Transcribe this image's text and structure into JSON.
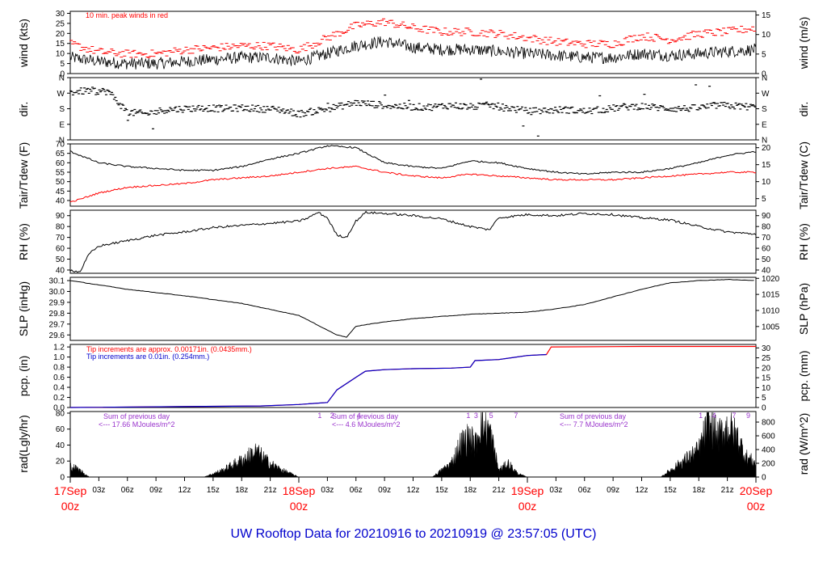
{
  "title": "UW Rooftop Data for 20210916  to  20210919 @ 23:57:05  (UTC)",
  "colors": {
    "red": "#ff0000",
    "blue": "#0000cc",
    "purple": "#9933cc",
    "black": "#000000"
  },
  "x_axis": {
    "hour_ticks": [
      "03z",
      "06z",
      "09z",
      "12z",
      "15z",
      "18z",
      "21z",
      "03z",
      "06z",
      "09z",
      "12z",
      "15z",
      "18z",
      "21z",
      "03z",
      "06z",
      "09z",
      "12z",
      "15z",
      "18z",
      "21z"
    ],
    "date_labels": [
      {
        "date": "17Sep",
        "time": "00z"
      },
      {
        "date": "18Sep",
        "time": "00z"
      },
      {
        "date": "19Sep",
        "time": "00z"
      },
      {
        "date": "20Sep",
        "time": "00z"
      }
    ]
  },
  "panels": {
    "wind": {
      "ylabel_left": "wind (kts)",
      "ylabel_right": "wind (m/s)",
      "left_ticks": [
        "0",
        "5",
        "10",
        "15",
        "20",
        "25",
        "30"
      ],
      "right_ticks": [
        "0",
        "5",
        "10",
        "15"
      ],
      "note": "10 min. peak winds in red"
    },
    "dir": {
      "ylabel_left": "dir.",
      "ylabel_right": "dir.",
      "ticks": [
        "N",
        "E",
        "S",
        "W",
        "N"
      ]
    },
    "temp": {
      "ylabel_left": "Tair/Tdew (F)",
      "ylabel_right": "Tair/Tdew (C)",
      "left_ticks": [
        "40",
        "45",
        "50",
        "55",
        "60",
        "65",
        "70"
      ],
      "right_ticks": [
        "5",
        "10",
        "15",
        "20"
      ]
    },
    "rh": {
      "ylabel_left": "RH (%)",
      "ylabel_right": "RH (%)",
      "ticks": [
        "40",
        "50",
        "60",
        "70",
        "80",
        "90"
      ]
    },
    "slp": {
      "ylabel_left": "SLP (inHg)",
      "ylabel_right": "SLP (hPa)",
      "left_ticks": [
        "29.6",
        "29.7",
        "29.8",
        "29.9",
        "30.0",
        "30.1"
      ],
      "right_ticks": [
        "1005",
        "1010",
        "1015",
        "1020"
      ]
    },
    "pcp": {
      "ylabel_left": "pcp. (in)",
      "ylabel_right": "pcp. (mm)",
      "left_ticks": [
        "0.0",
        "0.2",
        "0.4",
        "0.6",
        "0.8",
        "1.0",
        "1.2"
      ],
      "right_ticks": [
        "0",
        "5",
        "10",
        "15",
        "20",
        "25",
        "30"
      ],
      "note_red": "Tip increments are approx. 0.00171in. (0.0435mm.)",
      "note_blue": "Tip increments are 0.01in. (0.254mm.)"
    },
    "rad": {
      "ylabel_left": "rad(Lgly/hr)",
      "ylabel_right": "rad (W/m^2)",
      "left_ticks": [
        "0",
        "20",
        "40",
        "60",
        "80"
      ],
      "right_ticks": [
        "0",
        "200",
        "400",
        "600",
        "800"
      ],
      "summaries": [
        {
          "line1": "Sum of previous day",
          "line2": "<--- 17.66 MJoules/m^2"
        },
        {
          "line1": "Sum of previous day",
          "line2": "<--- 4.6 MJoules/m^2"
        },
        {
          "line1": "Sum of previous day",
          "line2": "<--- 7.7 MJoules/m^2"
        }
      ],
      "top_digits": [
        {
          "hour": 26.2,
          "label": "1"
        },
        {
          "hour": 27.5,
          "label": "2"
        },
        {
          "hour": 30.3,
          "label": "4"
        },
        {
          "hour": 41.8,
          "label": "1"
        },
        {
          "hour": 42.6,
          "label": "3"
        },
        {
          "hour": 44.2,
          "label": "5"
        },
        {
          "hour": 46.8,
          "label": "7"
        },
        {
          "hour": 66.2,
          "label": "1"
        },
        {
          "hour": 67.6,
          "label": "4"
        },
        {
          "hour": 69.7,
          "label": "7"
        },
        {
          "hour": 71.2,
          "label": "9"
        }
      ]
    }
  },
  "chart_data": [
    {
      "type": "line",
      "title": "",
      "ylabel": "wind (kts)",
      "ylim": [
        0,
        31
      ],
      "note": "10 min. peak winds in red",
      "x_unit": "hours since 17Sep 00z",
      "series": [
        {
          "style": "black mean wind",
          "x": [
            0,
            3,
            6,
            9,
            12,
            15,
            18,
            21,
            24,
            27,
            30,
            33,
            36,
            39,
            42,
            45,
            48,
            51,
            54,
            57,
            60,
            63,
            66,
            69,
            72
          ],
          "values": [
            8,
            6,
            5,
            5,
            6,
            7,
            8,
            8,
            6,
            10,
            14,
            16,
            13,
            12,
            12,
            11,
            10,
            9,
            8,
            8,
            10,
            9,
            10,
            11,
            12
          ]
        },
        {
          "style": "red peak (10 min)",
          "x": [
            0,
            3,
            6,
            9,
            12,
            15,
            18,
            21,
            24,
            27,
            30,
            33,
            36,
            39,
            42,
            45,
            48,
            51,
            54,
            57,
            60,
            63,
            66,
            69,
            72
          ],
          "values": [
            14,
            10,
            9,
            9,
            11,
            12,
            13,
            13,
            11,
            17,
            23,
            25,
            22,
            20,
            20,
            19,
            17,
            15,
            14,
            14,
            18,
            16,
            19,
            20,
            22
          ]
        }
      ]
    },
    {
      "type": "scatter",
      "ylabel": "dir.",
      "yticks": [
        "N",
        "E",
        "S",
        "W",
        "N"
      ],
      "ylim": [
        0,
        360
      ],
      "x": [
        0,
        2,
        4,
        6,
        8,
        10,
        12,
        14,
        16,
        18,
        20,
        22,
        24,
        26,
        28,
        30,
        32,
        34,
        36,
        38,
        40,
        42,
        44,
        46,
        48,
        50,
        52,
        54,
        56,
        58,
        60,
        62,
        64,
        66,
        68,
        70,
        72
      ],
      "values": [
        275,
        285,
        280,
        160,
        150,
        175,
        180,
        185,
        180,
        185,
        180,
        175,
        150,
        170,
        190,
        215,
        205,
        195,
        190,
        190,
        200,
        190,
        200,
        185,
        165,
        170,
        175,
        165,
        175,
        190,
        195,
        185,
        180,
        185,
        200,
        195,
        190
      ]
    },
    {
      "type": "line",
      "ylabel": "Tair/Tdew (F)",
      "ylim": [
        37,
        70
      ],
      "x": [
        0,
        3,
        6,
        9,
        12,
        15,
        18,
        21,
        24,
        27,
        30,
        33,
        36,
        39,
        42,
        45,
        48,
        51,
        54,
        57,
        60,
        63,
        66,
        69,
        72
      ],
      "series": [
        {
          "name": "Tair",
          "color": "#000000",
          "values": [
            66,
            60,
            58,
            57,
            56,
            56,
            58,
            62,
            65,
            69,
            68,
            60,
            58,
            57,
            61,
            60,
            57,
            55,
            54,
            55,
            55,
            57,
            60,
            64,
            66
          ]
        },
        {
          "name": "Tdew",
          "color": "#ff0000",
          "values": [
            39,
            44,
            47,
            48,
            49,
            51,
            52,
            53,
            55,
            57,
            58,
            55,
            53,
            52,
            54,
            53,
            52,
            51,
            51,
            51,
            52,
            53,
            54,
            55,
            55
          ]
        }
      ]
    },
    {
      "type": "line",
      "ylabel": "RH (%)",
      "ylim": [
        37,
        95
      ],
      "x": [
        0,
        1,
        2,
        3,
        6,
        9,
        12,
        15,
        18,
        21,
        24,
        25,
        26,
        27,
        28,
        29,
        30,
        31,
        33,
        36,
        39,
        42,
        44,
        45,
        48,
        51,
        54,
        57,
        60,
        63,
        66,
        69,
        72
      ],
      "values": [
        40,
        38,
        55,
        62,
        67,
        72,
        75,
        79,
        81,
        83,
        85,
        88,
        93,
        88,
        72,
        70,
        85,
        93,
        92,
        90,
        87,
        80,
        77,
        88,
        91,
        90,
        92,
        91,
        88,
        86,
        80,
        75,
        73
      ]
    },
    {
      "type": "line",
      "ylabel": "SLP (inHg)",
      "ylim": [
        29.55,
        30.13
      ],
      "x": [
        0,
        6,
        12,
        18,
        24,
        26,
        28,
        29,
        30,
        33,
        36,
        39,
        42,
        45,
        48,
        51,
        54,
        57,
        60,
        63,
        66,
        69,
        72
      ],
      "values": [
        30.1,
        30.02,
        29.96,
        29.89,
        29.78,
        29.69,
        29.6,
        29.58,
        29.68,
        29.72,
        29.75,
        29.77,
        29.79,
        29.8,
        29.81,
        29.84,
        29.88,
        29.95,
        30.02,
        30.08,
        30.1,
        30.11,
        30.1
      ]
    },
    {
      "type": "area",
      "ylabel": "pcp. (in)",
      "ylim": [
        0,
        1.25
      ],
      "series": [
        {
          "name": "Tip increments are approx. 0.00171in. (0.0435mm.)",
          "color": "#ff0000",
          "x": [
            0,
            20,
            24,
            27,
            28,
            30,
            31,
            33,
            36,
            40,
            42,
            42.5,
            45,
            48,
            50,
            50.5,
            60,
            72
          ],
          "values": [
            0,
            0.03,
            0.06,
            0.1,
            0.35,
            0.6,
            0.72,
            0.75,
            0.77,
            0.78,
            0.8,
            0.93,
            0.95,
            1.03,
            1.05,
            1.2,
            1.21,
            1.21
          ]
        },
        {
          "name": "Tip increments are 0.01in. (0.254mm.)",
          "color": "#0000cc",
          "x": [
            0,
            20,
            24,
            27,
            28,
            30,
            31,
            33,
            36,
            40,
            42,
            42.5,
            45,
            48,
            50
          ],
          "values": [
            0,
            0.03,
            0.06,
            0.1,
            0.35,
            0.6,
            0.72,
            0.75,
            0.77,
            0.78,
            0.8,
            0.93,
            0.95,
            1.03,
            1.05
          ]
        }
      ]
    },
    {
      "type": "area",
      "ylabel": "rad(Lgly/hr)",
      "ylim": [
        0,
        82
      ],
      "x": [
        0,
        1,
        2,
        14,
        16,
        18,
        19.5,
        21,
        22,
        24,
        38,
        40,
        41,
        42,
        42.5,
        43,
        44,
        44.7,
        45,
        46,
        47,
        48,
        62,
        64,
        66,
        67,
        68,
        69,
        70,
        71,
        72
      ],
      "values": [
        17,
        10,
        0,
        0,
        10,
        25,
        38,
        20,
        12,
        0,
        0,
        20,
        50,
        60,
        45,
        80,
        70,
        30,
        10,
        20,
        5,
        0,
        0,
        20,
        40,
        80,
        60,
        75,
        60,
        30,
        20
      ]
    }
  ]
}
